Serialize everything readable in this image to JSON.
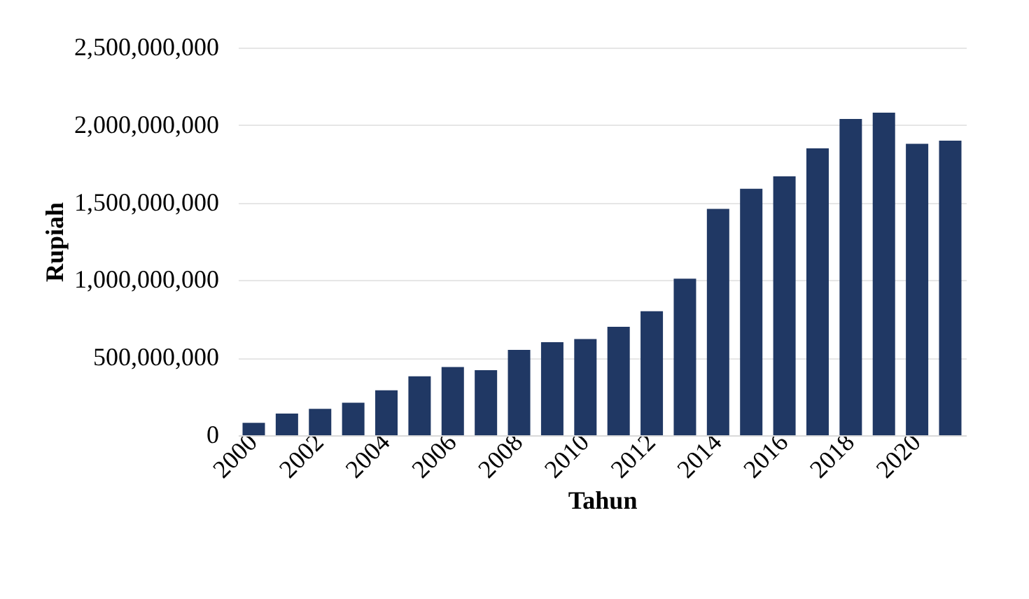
{
  "chart_data": {
    "type": "bar",
    "xlabel": "Tahun",
    "ylabel": "Rupiah",
    "categories": [
      "2000",
      null,
      "2002",
      null,
      "2004",
      null,
      "2006",
      null,
      "2008",
      null,
      "2010",
      null,
      "2012",
      null,
      "2014",
      null,
      "2016",
      null,
      "2018",
      null,
      "2020",
      null
    ],
    "values": [
      80000000,
      140000000,
      170000000,
      210000000,
      290000000,
      380000000,
      440000000,
      420000000,
      550000000,
      600000000,
      620000000,
      700000000,
      800000000,
      1010000000,
      1460000000,
      1590000000,
      1670000000,
      1850000000,
      2040000000,
      2080000000,
      1880000000,
      1900000000
    ],
    "color": "#203864",
    "ylim": [
      0,
      2500000000
    ],
    "yticks": [
      {
        "value": 0,
        "label": "0"
      },
      {
        "value": 500000000,
        "label": "500,000,000"
      },
      {
        "value": 1000000000,
        "label": "1,000,000,000"
      },
      {
        "value": 1500000000,
        "label": "1,500,000,000"
      },
      {
        "value": 2000000000,
        "label": "2,000,000,000"
      },
      {
        "value": 2500000000,
        "label": "2,500,000,000"
      }
    ],
    "grid": "y"
  }
}
